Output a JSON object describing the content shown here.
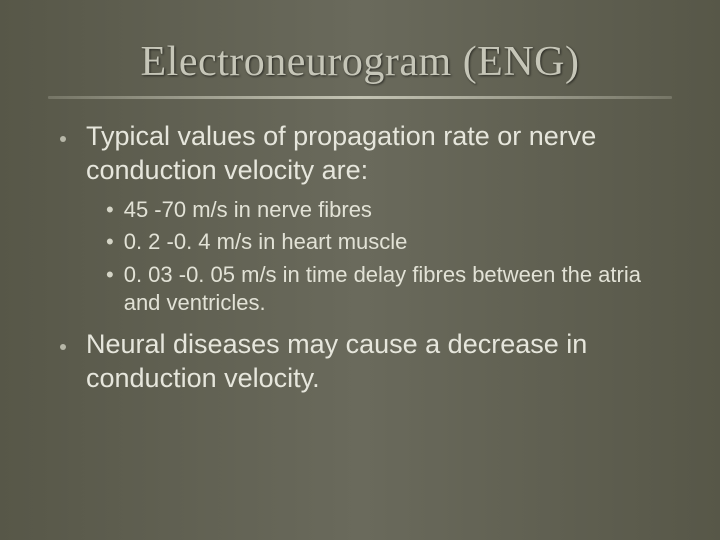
{
  "slide": {
    "title": "Electroneurogram (ENG)",
    "background_gradient": [
      "#575748",
      "#6a6a5c",
      "#575748"
    ],
    "title_color": "#c6c6b8",
    "title_font": "Times New Roman",
    "title_fontsize": 42,
    "body_font": "Arial",
    "body_color": "#e6e6dc",
    "main_fontsize": 27,
    "sub_fontsize": 22,
    "underline_color": "#c8c8b8",
    "items": [
      {
        "text": "Typical values of propagation rate or nerve conduction velocity are:",
        "sub": [
          "45 -70 m/s in nerve fibres",
          "0. 2 -0. 4 m/s in heart muscle",
          "0. 03 -0. 05 m/s in time delay fibres between the atria and ventricles."
        ]
      },
      {
        "text": "Neural diseases may cause a decrease in conduction velocity.",
        "sub": []
      }
    ]
  }
}
